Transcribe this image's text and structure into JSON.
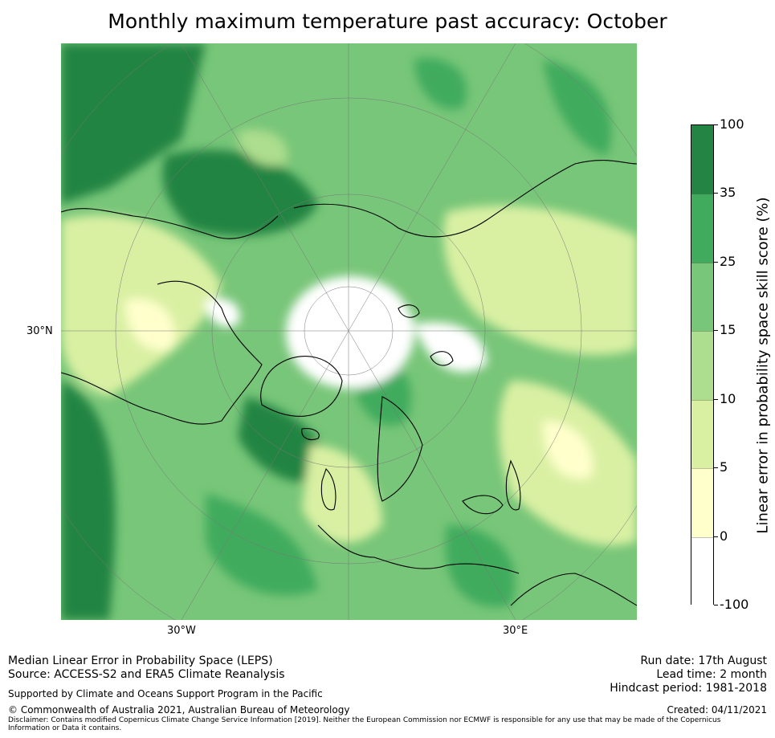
{
  "title": "Monthly maximum temperature past accuracy: October",
  "map": {
    "projection": "polar-stereographic-north",
    "lat_labels": [
      "30°N"
    ],
    "lon_labels": [
      "30°W",
      "30°E"
    ],
    "colors": {
      "land_outline": "#000000",
      "graticule": "#777777",
      "base": "#7cc47c"
    }
  },
  "colorbar": {
    "title": "Linear error in probability space skill score (%)",
    "tick_labels": [
      "100",
      "35",
      "25",
      "15",
      "10",
      "5",
      "0",
      "-100"
    ],
    "bands": [
      {
        "range": "35 to 100",
        "color": "#238443"
      },
      {
        "range": "25 to 35",
        "color": "#41ab5d"
      },
      {
        "range": "15 to 25",
        "color": "#78c679"
      },
      {
        "range": "10 to 15",
        "color": "#addd8e"
      },
      {
        "range": "5 to 10",
        "color": "#d9f0a3"
      },
      {
        "range": "0 to 5",
        "color": "#ffffcc"
      },
      {
        "range": "-100 to 0",
        "color": "#ffffff"
      }
    ]
  },
  "footer": {
    "left_line1": "Median Linear Error in Probability Space (LEPS)",
    "left_line2": "Source: ACCESS-S2 and ERA5 Climate Reanalysis",
    "supported": "Supported by Climate and Oceans Support Program in the Pacific",
    "copyright": "© Commonwealth of Australia 2021, Australian Bureau of Meteorology",
    "disclaimer": "Disclaimer: Contains modified Copernicus Climate Change Service Information [2019]. Neither the European Commission nor ECMWF is responsible for any use that may be made of the Copernicus Information or Data it contains.",
    "run_date": "Run date: 17th August",
    "lead_time": "Lead time: 2 month",
    "hindcast": "Hindcast period: 1981-2018",
    "created": "Created: 04/11/2021"
  }
}
